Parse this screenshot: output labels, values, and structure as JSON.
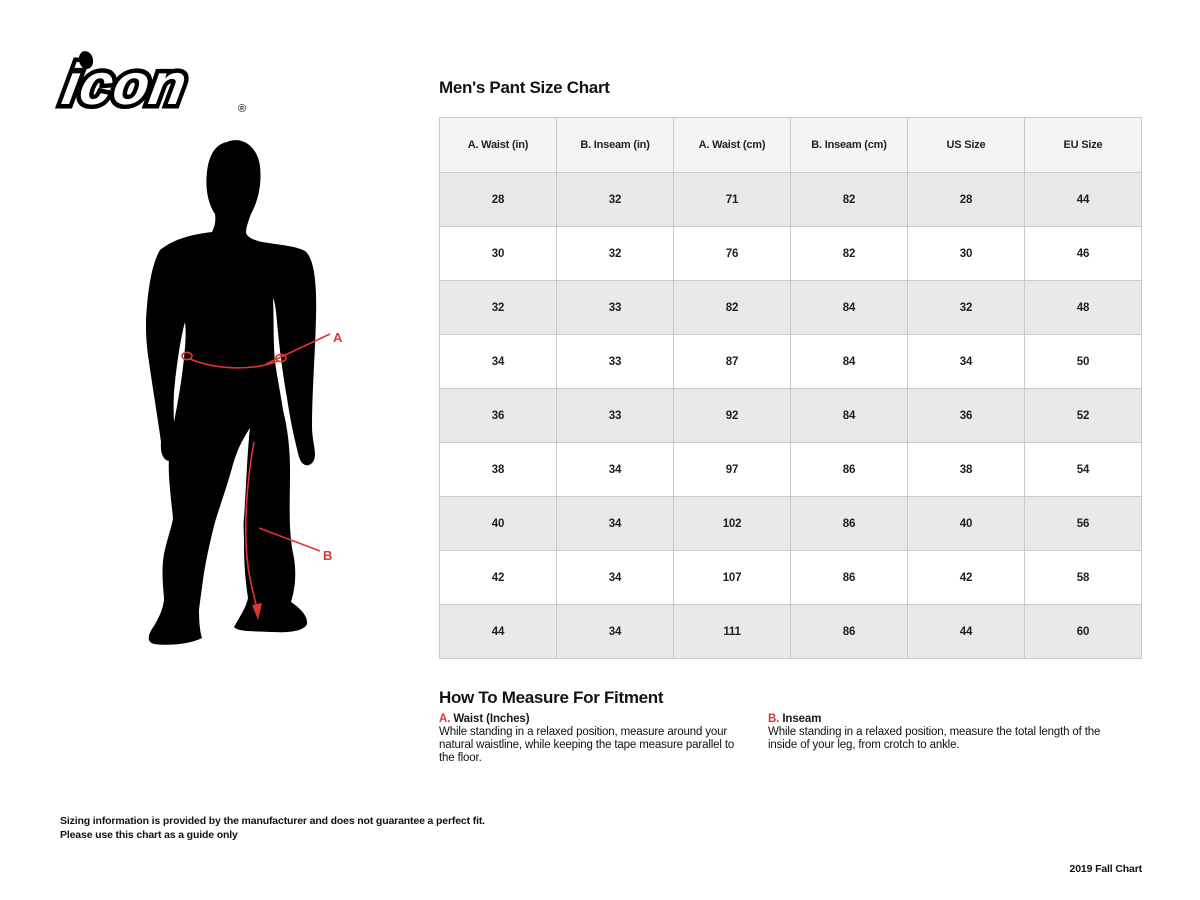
{
  "logo": {
    "brand": "icon",
    "registered": "®"
  },
  "title": "Men's Pant Size Chart",
  "figure": {
    "label_a": "A",
    "label_b": "B"
  },
  "table": {
    "headers": [
      "A. Waist (in)",
      "B. Inseam (in)",
      "A. Waist (cm)",
      "B. Inseam (cm)",
      "US Size",
      "EU Size"
    ],
    "rows": [
      [
        "28",
        "32",
        "71",
        "82",
        "28",
        "44"
      ],
      [
        "30",
        "32",
        "76",
        "82",
        "30",
        "46"
      ],
      [
        "32",
        "33",
        "82",
        "84",
        "32",
        "48"
      ],
      [
        "34",
        "33",
        "87",
        "84",
        "34",
        "50"
      ],
      [
        "36",
        "33",
        "92",
        "84",
        "36",
        "52"
      ],
      [
        "38",
        "34",
        "97",
        "86",
        "38",
        "54"
      ],
      [
        "40",
        "34",
        "102",
        "86",
        "40",
        "56"
      ],
      [
        "42",
        "34",
        "107",
        "86",
        "42",
        "58"
      ],
      [
        "44",
        "34",
        "111",
        "86",
        "44",
        "60"
      ]
    ]
  },
  "measure": {
    "heading": "How To Measure For Fitment",
    "items": [
      {
        "prefix": "A.",
        "label": "Waist (Inches)",
        "description": "While standing in a relaxed position, measure around your natural waistline, while keeping the tape measure parallel to the floor."
      },
      {
        "prefix": "B.",
        "label": "Inseam",
        "description": "While standing in a relaxed position, measure the total length of the inside of your leg, from crotch to ankle."
      }
    ]
  },
  "footnote": {
    "line1": "Sizing information is provided by the manufacturer and does not guarantee a perfect fit.",
    "line2": "Please use this chart as a guide only"
  },
  "footer_right": "2019 Fall Chart",
  "colors": {
    "accent_red": "#e0352f",
    "text": "#1a1a1a",
    "row_alt_bg": "#e9e9e7",
    "header_bg": "#f4f4f2",
    "table_border": "#c9c9c8"
  }
}
